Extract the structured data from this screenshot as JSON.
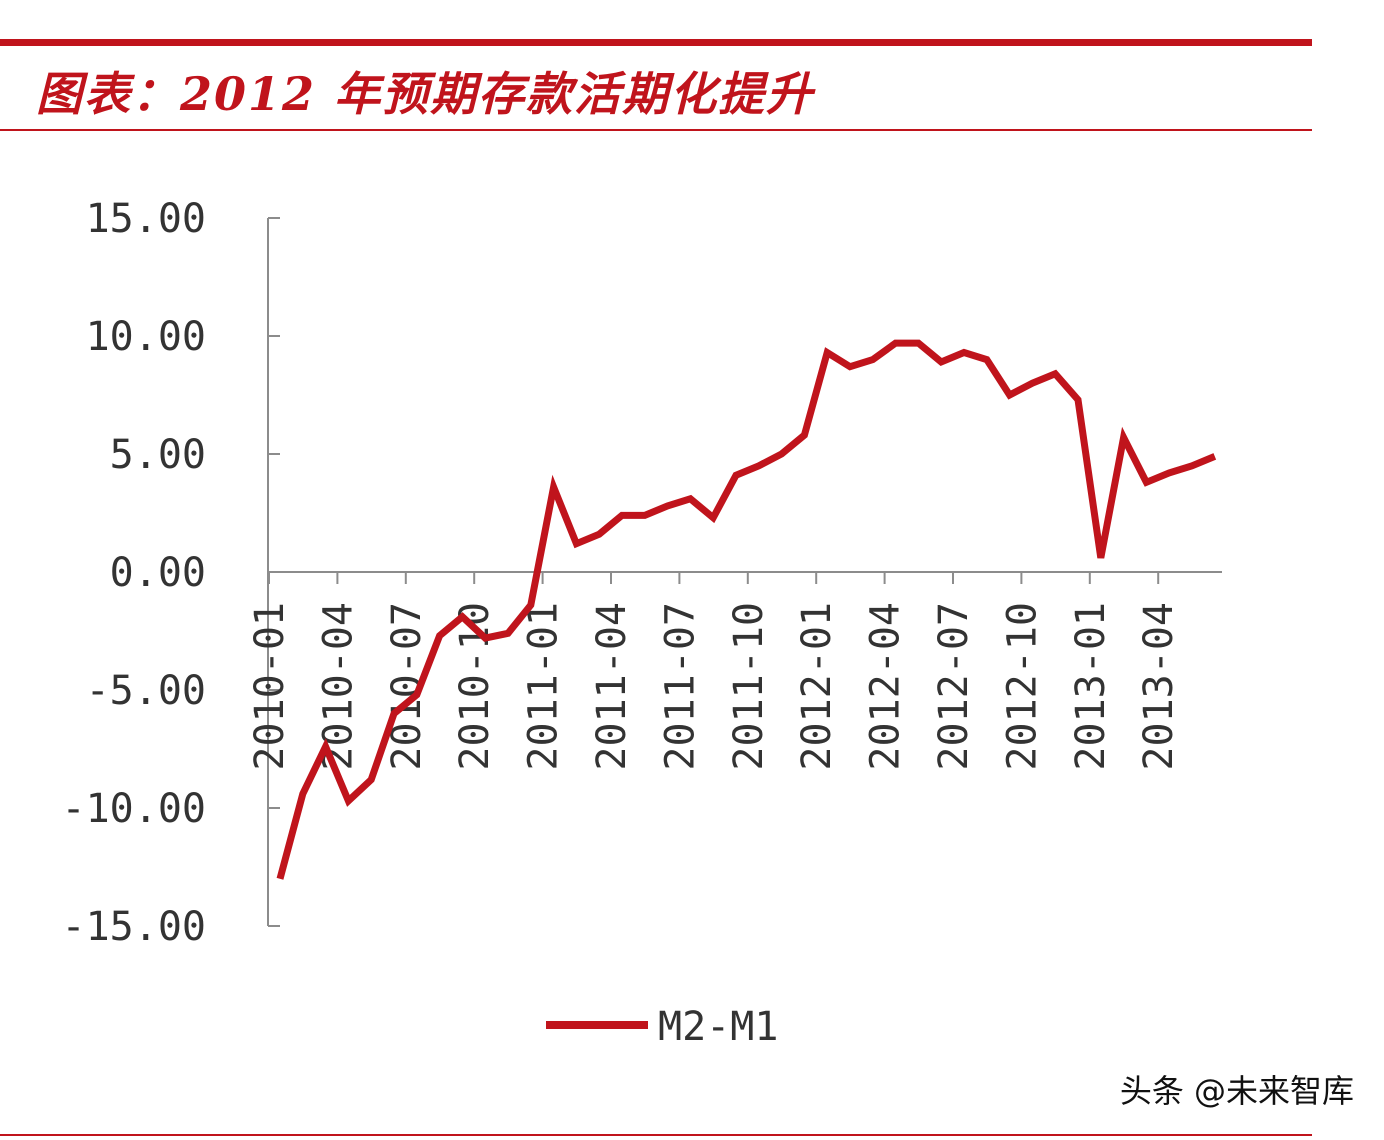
{
  "header": {
    "title": "图表：2012 年预期存款活期化提升"
  },
  "colors": {
    "accent": "#c0141c",
    "axis": "#8c8c8c",
    "tick_text": "#333333"
  },
  "watermark": "头条 @未来智库",
  "chart_data": {
    "type": "line",
    "title": "图表：2012 年预期存款活期化提升",
    "xlabel": "",
    "ylabel": "",
    "ylim": [
      -15,
      15
    ],
    "yticks": [
      "15.00",
      "10.00",
      "5.00",
      "0.00",
      "-5.00",
      "-10.00",
      "-15.00"
    ],
    "ytick_values": [
      15,
      10,
      5,
      0,
      -5,
      -10,
      -15
    ],
    "x_tick_labels": [
      "2010-01",
      "2010-04",
      "2010-07",
      "2010-10",
      "2011-01",
      "2011-04",
      "2011-07",
      "2011-10",
      "2012-01",
      "2012-04",
      "2012-07",
      "2012-10",
      "2013-01",
      "2013-04"
    ],
    "x": [
      "2010-01",
      "2010-02",
      "2010-03",
      "2010-04",
      "2010-05",
      "2010-06",
      "2010-07",
      "2010-08",
      "2010-09",
      "2010-10",
      "2010-11",
      "2010-12",
      "2011-01",
      "2011-02",
      "2011-03",
      "2011-04",
      "2011-05",
      "2011-06",
      "2011-07",
      "2011-08",
      "2011-09",
      "2011-10",
      "2011-11",
      "2011-12",
      "2012-01",
      "2012-02",
      "2012-03",
      "2012-04",
      "2012-05",
      "2012-06",
      "2012-07",
      "2012-08",
      "2012-09",
      "2012-10",
      "2012-11",
      "2012-12",
      "2013-01",
      "2013-02",
      "2013-03",
      "2013-04",
      "2013-05",
      "2013-06"
    ],
    "grid": false,
    "legend_position": "bottom-center",
    "series": [
      {
        "name": "M2-M1",
        "color": "#c0141c",
        "values": [
          -13.0,
          -9.4,
          -7.4,
          -9.7,
          -8.8,
          -6.0,
          -5.2,
          -2.7,
          -1.9,
          -2.8,
          -2.6,
          -1.4,
          3.6,
          1.2,
          1.6,
          2.4,
          2.4,
          2.8,
          3.1,
          2.3,
          4.1,
          4.5,
          5.0,
          5.8,
          9.3,
          8.7,
          9.0,
          9.7,
          9.7,
          8.9,
          9.3,
          9.0,
          7.5,
          8.0,
          8.4,
          7.3,
          0.6,
          5.7,
          3.8,
          4.2,
          4.5,
          4.9
        ]
      }
    ]
  }
}
